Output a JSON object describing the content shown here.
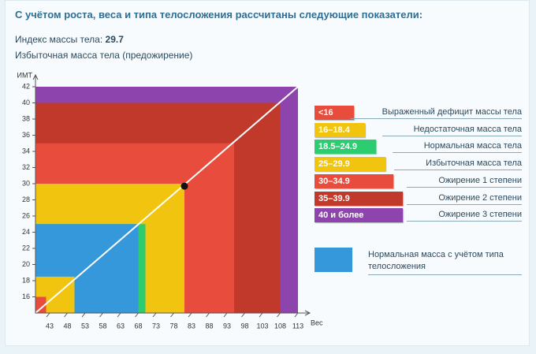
{
  "header": {
    "title": "С учётом роста, веса и типа телосложения рассчитаны следующие показатели:",
    "bmi_label": "Индекс массы тела:",
    "bmi_value": 29.7,
    "status": "Избыточная масса тела (предожирение)"
  },
  "chart_data": {
    "type": "zones",
    "y_label": "ИМТ",
    "x_label": "Вес",
    "xlim": [
      39,
      113
    ],
    "ylim": [
      14,
      42
    ],
    "xticks": [
      43,
      48,
      53,
      58,
      63,
      68,
      73,
      78,
      83,
      88,
      93,
      98,
      103,
      108,
      113
    ],
    "yticks": [
      16,
      18,
      20,
      22,
      24,
      26,
      28,
      30,
      32,
      34,
      36,
      38,
      40,
      42
    ],
    "zones": [
      {
        "color": "#8e44ad",
        "x": 113,
        "y": 42
      },
      {
        "color": "#c0392b",
        "x": 108,
        "y": 40
      },
      {
        "color": "#e74c3c",
        "x": 95,
        "y": 35
      },
      {
        "color": "#f1c40f",
        "x": 81,
        "y": 30
      },
      {
        "color": "#2ecc71",
        "x": 70,
        "y": 25
      },
      {
        "color": "#3498db",
        "x": 68,
        "y": 25
      },
      {
        "color": "#f1c40f",
        "x": 50,
        "y": 18.5
      },
      {
        "color": "#e74c3c",
        "x": 42,
        "y": 16
      }
    ],
    "line": {
      "color": "#ffffff",
      "x": [
        39,
        113
      ],
      "y": [
        14,
        42
      ]
    },
    "point": {
      "x": 81
    }
  },
  "legend": {
    "items": [
      {
        "range": "<16",
        "label": "Выраженный дефицит массы тела",
        "color": "#e74c3c"
      },
      {
        "range": "16–18.4",
        "label": "Недостаточная масса тела",
        "color": "#f1c40f"
      },
      {
        "range": "18.5–24.9",
        "label": "Нормальная масса тела",
        "color": "#2ecc71"
      },
      {
        "range": "25–29.9",
        "label": "Избыточная масса тела",
        "color": "#f1c40f"
      },
      {
        "range": "30–34.9",
        "label": "Ожирение 1 степени",
        "color": "#e74c3c"
      },
      {
        "range": "35–39.9",
        "label": "Ожирение 2 степени",
        "color": "#c0392b"
      },
      {
        "range": "40 и более",
        "label": "Ожирение 3 степени",
        "color": "#8e44ad"
      }
    ],
    "body_type": {
      "color": "#3498db",
      "label": "Нормальная масса с учётом типа телосложения"
    }
  }
}
